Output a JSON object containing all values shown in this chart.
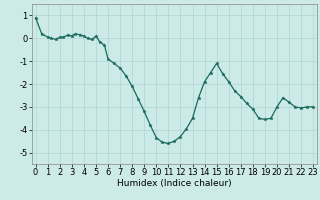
{
  "x": [
    0,
    0.5,
    1,
    1.3,
    1.7,
    2,
    2.3,
    2.7,
    3,
    3.3,
    3.7,
    4,
    4.3,
    4.7,
    5,
    5.3,
    5.7,
    6,
    6.5,
    7,
    7.5,
    8,
    8.5,
    9,
    9.5,
    10,
    10.5,
    11,
    11.5,
    12,
    12.5,
    13,
    13.5,
    14,
    14.5,
    15,
    15.5,
    16,
    16.5,
    17,
    17.5,
    18,
    18.5,
    19,
    19.5,
    20,
    20.5,
    21,
    21.5,
    22,
    22.5,
    23
  ],
  "y": [
    0.9,
    0.2,
    0.05,
    0.0,
    -0.05,
    0.05,
    0.05,
    0.15,
    0.1,
    0.2,
    0.15,
    0.1,
    0.0,
    -0.05,
    0.1,
    -0.15,
    -0.3,
    -0.9,
    -1.1,
    -1.3,
    -1.65,
    -2.1,
    -2.65,
    -3.2,
    -3.8,
    -4.35,
    -4.55,
    -4.6,
    -4.5,
    -4.3,
    -3.95,
    -3.5,
    -2.6,
    -1.9,
    -1.5,
    -1.1,
    -1.55,
    -1.9,
    -2.3,
    -2.55,
    -2.85,
    -3.1,
    -3.5,
    -3.55,
    -3.5,
    -3.0,
    -2.6,
    -2.8,
    -3.0,
    -3.05,
    -3.0,
    -3.0
  ],
  "line_color": "#1a6b5a",
  "marker": "*",
  "marker_size": 2.5,
  "bg_color": "#cceae7",
  "grid_color": "#b0d5d2",
  "xlabel": "Humidex (Indice chaleur)",
  "xlim": [
    -0.3,
    23.3
  ],
  "ylim": [
    -5.5,
    1.5
  ],
  "yticks": [
    1,
    0,
    -1,
    -2,
    -3,
    -4,
    -5
  ],
  "xticks": [
    0,
    1,
    2,
    3,
    4,
    5,
    6,
    7,
    8,
    9,
    10,
    11,
    12,
    13,
    14,
    15,
    16,
    17,
    18,
    19,
    20,
    21,
    22,
    23
  ],
  "xlabel_fontsize": 6.5,
  "tick_fontsize": 6.0,
  "linewidth": 0.9
}
